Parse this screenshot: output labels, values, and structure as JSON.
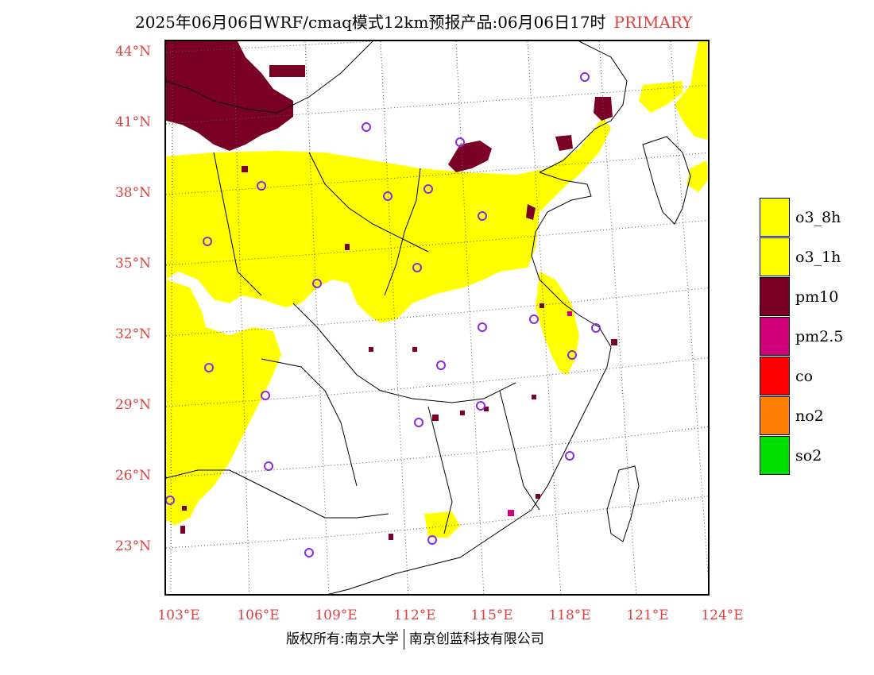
{
  "title": {
    "main": "2025年06月06日WRF/cmaq模式12km预报产品:06月06日17时",
    "tag": "PRIMARY"
  },
  "axes": {
    "lat_labels": [
      "44°N",
      "41°N",
      "38°N",
      "35°N",
      "32°N",
      "29°N",
      "26°N",
      "23°N"
    ],
    "lon_labels": [
      "103°E",
      "106°E",
      "109°E",
      "112°E",
      "115°E",
      "118°E",
      "121°E",
      "124°E"
    ]
  },
  "legend": [
    {
      "label": "o3_8h",
      "color": "#ffff00"
    },
    {
      "label": "o3_1h",
      "color": "#ffff00"
    },
    {
      "label": "pm10",
      "color": "#7a0026"
    },
    {
      "label": "pm2.5",
      "color": "#d0007a"
    },
    {
      "label": "co",
      "color": "#ff0000"
    },
    {
      "label": "no2",
      "color": "#ff8000"
    },
    {
      "label": "so2",
      "color": "#00e000"
    }
  ],
  "copyright": {
    "left": "版权所有:南京大学",
    "right": "南京创蓝科技有限公司"
  },
  "colors": {
    "label_red": "#e04040",
    "o3": "#ffff00",
    "pm10": "#7a0026",
    "pm25": "#d0007a",
    "city_marker": "#8a2be2"
  }
}
